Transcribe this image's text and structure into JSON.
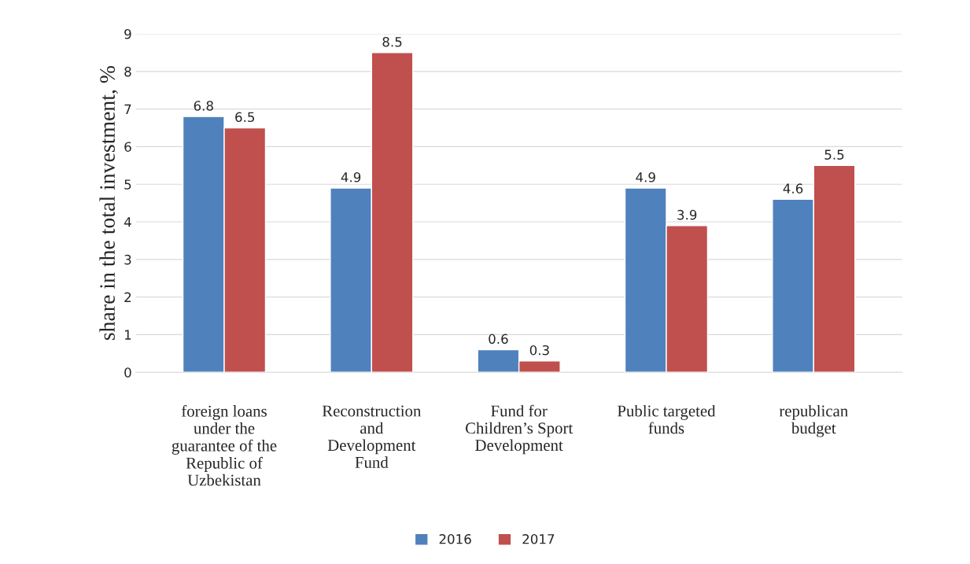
{
  "chart_data": {
    "type": "bar",
    "ylabel": "share in the total investment, %",
    "categories": [
      "foreign loans\nunder the\nguarantee of the\nRepublic of\nUzbekistan",
      "Reconstruction\nand\nDevelopment\nFund",
      "Fund for\nChildren’s Sport\nDevelopment",
      "Public targeted\nfunds",
      "republican\nbudget"
    ],
    "series": [
      {
        "name": "2016",
        "color": "#4f81bd",
        "values": [
          6.8,
          4.9,
          0.6,
          4.9,
          4.6
        ]
      },
      {
        "name": "2017",
        "color": "#c0504d",
        "values": [
          6.5,
          8.5,
          0.3,
          3.9,
          5.5
        ]
      }
    ],
    "ylim": [
      0,
      9
    ],
    "yticks": [
      0,
      1,
      2,
      3,
      4,
      5,
      6,
      7,
      8,
      9
    ],
    "grid": "y",
    "legend": "bottom",
    "data_labels": true
  }
}
